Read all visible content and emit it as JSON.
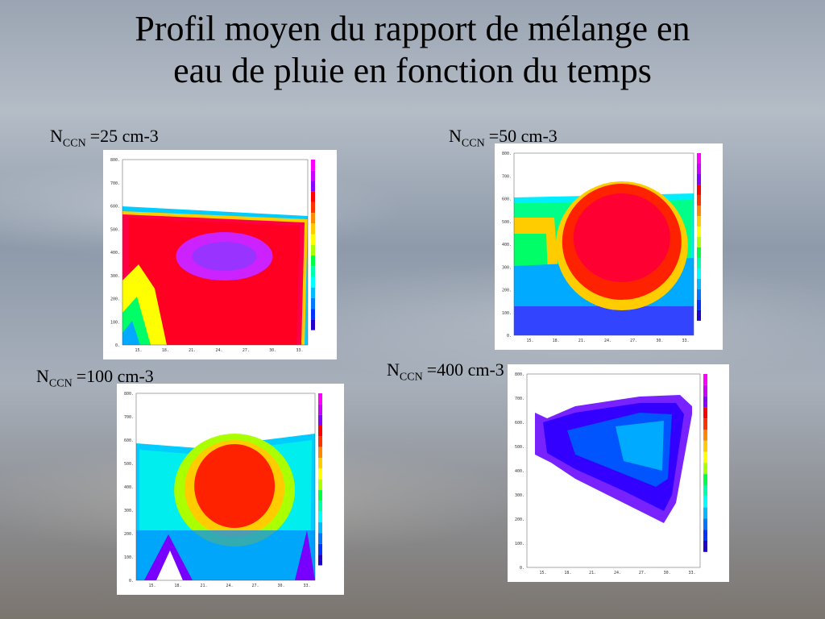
{
  "title": {
    "lines": [
      "Profil moyen du rapport de mélange en",
      "eau de pluie en fonction du temps"
    ]
  },
  "axis": {
    "yticks": [
      "0.",
      "100.",
      "200.",
      "300.",
      "400.",
      "500.",
      "600.",
      "700.",
      "800."
    ],
    "xticks": [
      "15.",
      "18.",
      "21.",
      "24.",
      "27.",
      "30.",
      "33."
    ]
  },
  "panels": [
    {
      "label": {
        "main": "N",
        "sub": "CCN",
        "rest": "=25 cm-3"
      }
    },
    {
      "label": {
        "main": "N",
        "sub": "CCN",
        "rest": "=50 cm-3"
      }
    },
    {
      "label": {
        "main": "N",
        "sub": "CCN",
        "rest": "=100 cm-3"
      }
    },
    {
      "label": {
        "main": "N",
        "sub": "CCN",
        "rest": "=400 cm-3"
      }
    }
  ]
}
